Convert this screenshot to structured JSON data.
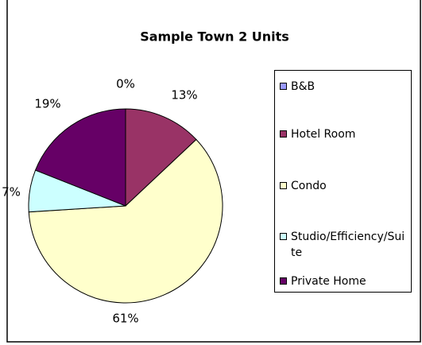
{
  "chart_data": {
    "type": "pie",
    "title": "Sample Town 2 Units",
    "categories": [
      "B&B",
      "Hotel Room",
      "Condo",
      "Studio/Efficiency/Suite",
      "Private Home"
    ],
    "values": [
      0,
      13,
      61,
      7,
      19
    ],
    "value_labels": [
      "0%",
      "13%",
      "61%",
      "7%",
      "19%"
    ],
    "colors": [
      "#9999ff",
      "#993366",
      "#ffffcc",
      "#ccffff",
      "#660066"
    ],
    "legend": "right"
  }
}
